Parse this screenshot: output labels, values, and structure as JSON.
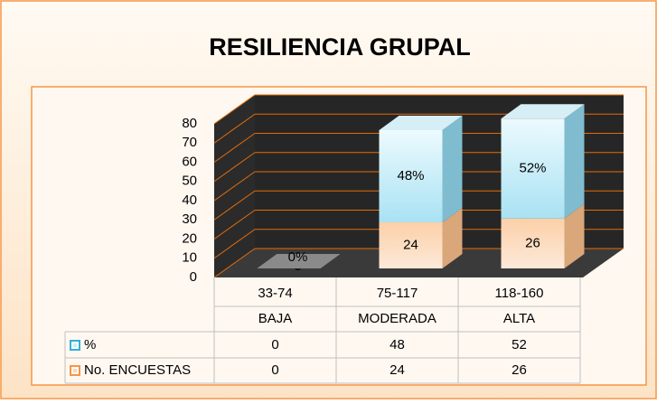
{
  "chart_data": {
    "type": "bar3d_stacked",
    "title": "RESILIENCIA GRUPAL",
    "categories": [
      "33-74",
      "75-117",
      "118-160"
    ],
    "category_groups": [
      "BAJA",
      "MODERADA",
      "ALTA"
    ],
    "series": [
      {
        "name": "No. ENCUESTAS",
        "color": "#fcd5b4",
        "values": [
          0,
          24,
          26
        ]
      },
      {
        "name": "%",
        "color": "#c6eefa",
        "values": [
          0,
          48,
          52
        ],
        "value_labels": [
          "0%",
          "48%",
          "52%"
        ]
      }
    ],
    "ylim": [
      0,
      80
    ],
    "yticks": [
      0,
      10,
      20,
      30,
      40,
      50,
      60,
      70,
      80
    ],
    "grid": true,
    "data_table": true
  }
}
